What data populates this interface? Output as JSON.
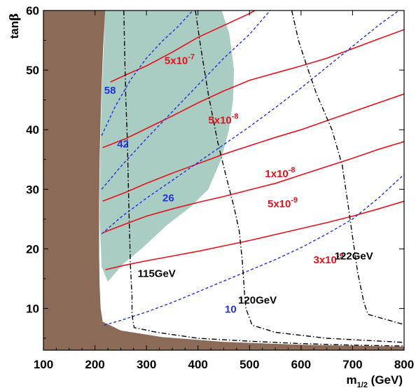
{
  "chart_data": {
    "type": "line",
    "xlabel": "m",
    "xlabel_sub": "1/2",
    "xlabel_unit": " (GeV)",
    "ylabel": "tan",
    "ylabel_greek": "β",
    "xlim": [
      100,
      800
    ],
    "ylim": [
      3,
      60
    ],
    "x_ticks": [
      100,
      200,
      300,
      400,
      500,
      600,
      700,
      800
    ],
    "y_ticks": [
      10,
      20,
      30,
      40,
      50,
      60
    ],
    "regions": [
      {
        "name": "excluded-region",
        "color": "#8b6a58",
        "points": [
          [
            100,
            3
          ],
          [
            100,
            60
          ],
          [
            220,
            60
          ],
          [
            216,
            54
          ],
          [
            212,
            45
          ],
          [
            209,
            35
          ],
          [
            208,
            27
          ],
          [
            208,
            19
          ],
          [
            209,
            14
          ],
          [
            211,
            10
          ],
          [
            215,
            7.8
          ],
          [
            250,
            6.3
          ],
          [
            330,
            5.2
          ],
          [
            450,
            4.4
          ],
          [
            600,
            3.9
          ],
          [
            800,
            3.6
          ],
          [
            800,
            3
          ]
        ]
      },
      {
        "name": "shaded-region",
        "color": "#aacdc3",
        "points": [
          [
            220,
            60
          ],
          [
            446,
            60
          ],
          [
            461,
            56
          ],
          [
            470,
            50
          ],
          [
            468,
            45
          ],
          [
            460,
            40
          ],
          [
            445,
            35
          ],
          [
            420,
            30
          ],
          [
            385,
            27
          ],
          [
            340,
            24
          ],
          [
            290,
            20
          ],
          [
            255,
            17.5
          ],
          [
            225,
            14.5
          ],
          [
            213,
            17
          ],
          [
            209,
            25
          ],
          [
            210,
            35
          ],
          [
            213,
            45
          ],
          [
            217,
            54
          ]
        ]
      }
    ],
    "series": [
      {
        "group": "red",
        "color": "#e8111b",
        "style": "solid",
        "label_text": "5x10",
        "label_exp": "-7",
        "label_at": [
          335,
          51
        ],
        "points": [
          [
            230,
            48
          ],
          [
            260,
            49.2
          ],
          [
            300,
            50.7
          ],
          [
            350,
            53
          ],
          [
            400,
            55.5
          ],
          [
            450,
            57.5
          ],
          [
            500,
            59.5
          ],
          [
            510,
            60
          ]
        ]
      },
      {
        "group": "red",
        "color": "#e8111b",
        "style": "solid",
        "label_text": "5x10",
        "label_exp": "-8",
        "label_at": [
          420,
          41
        ],
        "points": [
          [
            215,
            37
          ],
          [
            260,
            38.5
          ],
          [
            300,
            40.2
          ],
          [
            350,
            42.3
          ],
          [
            400,
            44.5
          ],
          [
            450,
            46.5
          ],
          [
            500,
            48.3
          ],
          [
            550,
            49.5
          ],
          [
            600,
            50.7
          ],
          [
            650,
            52
          ],
          [
            700,
            53.6
          ],
          [
            750,
            55.2
          ],
          [
            800,
            56.8
          ]
        ]
      },
      {
        "group": "red",
        "color": "#e8111b",
        "style": "solid",
        "label_text": "1x10",
        "label_exp": "-8",
        "label_at": [
          530,
          32
        ],
        "points": [
          [
            215,
            28
          ],
          [
            260,
            29.5
          ],
          [
            300,
            31
          ],
          [
            350,
            32.7
          ],
          [
            400,
            34.3
          ],
          [
            450,
            35.9
          ],
          [
            500,
            37.3
          ],
          [
            550,
            38.7
          ],
          [
            600,
            40
          ],
          [
            650,
            41.5
          ],
          [
            700,
            43
          ],
          [
            750,
            44.5
          ],
          [
            800,
            46
          ]
        ]
      },
      {
        "group": "red",
        "color": "#e8111b",
        "style": "solid",
        "label_text": "5x10",
        "label_exp": "-9",
        "label_at": [
          535,
          27
        ],
        "points": [
          [
            215,
            22.7
          ],
          [
            260,
            24.2
          ],
          [
            300,
            25.5
          ],
          [
            350,
            26.7
          ],
          [
            400,
            27.8
          ],
          [
            450,
            28.8
          ],
          [
            500,
            29.9
          ],
          [
            550,
            31
          ],
          [
            600,
            32.4
          ],
          [
            650,
            33.8
          ],
          [
            700,
            35.2
          ],
          [
            750,
            36.7
          ],
          [
            800,
            38
          ]
        ]
      },
      {
        "group": "red",
        "color": "#e8111b",
        "style": "solid",
        "label_text": "3x10",
        "label_exp": "-9",
        "label_at": [
          624,
          17.6
        ],
        "points": [
          [
            220,
            16.5
          ],
          [
            260,
            17.3
          ],
          [
            300,
            18
          ],
          [
            350,
            18.8
          ],
          [
            400,
            19.6
          ],
          [
            450,
            20.5
          ],
          [
            500,
            21.4
          ],
          [
            550,
            22.4
          ],
          [
            600,
            23.4
          ],
          [
            650,
            24.4
          ],
          [
            700,
            25.5
          ],
          [
            750,
            26.7
          ],
          [
            800,
            28
          ]
        ]
      },
      {
        "group": "blue",
        "color": "#1e32e0",
        "style": "dashed",
        "label_text": "58",
        "label_at": [
          218,
          46
        ],
        "points": [
          [
            213,
            39
          ],
          [
            240,
            44
          ],
          [
            270,
            48.5
          ],
          [
            300,
            52
          ],
          [
            330,
            54.8
          ],
          [
            360,
            57.2
          ],
          [
            390,
            60
          ]
        ]
      },
      {
        "group": "blue",
        "color": "#1e32e0",
        "style": "dashed",
        "label_text": "42",
        "label_at": [
          243,
          37
        ],
        "points": [
          [
            213,
            30
          ],
          [
            250,
            33.8
          ],
          [
            300,
            38.5
          ],
          [
            350,
            43
          ],
          [
            400,
            47.5
          ],
          [
            450,
            52
          ],
          [
            500,
            56
          ],
          [
            540,
            60
          ]
        ]
      },
      {
        "group": "blue",
        "color": "#1e32e0",
        "style": "dashed",
        "label_text": "26",
        "label_at": [
          331,
          28
        ],
        "points": [
          [
            213,
            22.5
          ],
          [
            250,
            25.3
          ],
          [
            300,
            28.5
          ],
          [
            350,
            31.5
          ],
          [
            400,
            34.5
          ],
          [
            450,
            37.5
          ],
          [
            500,
            40.5
          ],
          [
            550,
            43.7
          ],
          [
            600,
            47
          ],
          [
            650,
            50.5
          ],
          [
            700,
            54
          ],
          [
            750,
            57.5
          ],
          [
            790,
            60
          ]
        ]
      },
      {
        "group": "blue",
        "color": "#1e32e0",
        "style": "dashed",
        "label_text": "10",
        "label_at": [
          452,
          9.3
        ],
        "points": [
          [
            218,
            7.2
          ],
          [
            250,
            8
          ],
          [
            300,
            9.4
          ],
          [
            350,
            11
          ],
          [
            400,
            12.8
          ],
          [
            450,
            14.6
          ],
          [
            500,
            16.4
          ],
          [
            550,
            18.2
          ],
          [
            600,
            20.2
          ],
          [
            650,
            22.5
          ],
          [
            700,
            25
          ],
          [
            750,
            28.5
          ],
          [
            800,
            32.5
          ]
        ]
      },
      {
        "group": "black",
        "color": "#000000",
        "style": "dashdot",
        "label_text": "115GeV",
        "label_at": [
          283,
          15.3
        ],
        "points": [
          [
            256,
            60
          ],
          [
            258,
            52
          ],
          [
            260,
            45
          ],
          [
            263,
            38
          ],
          [
            265,
            30
          ],
          [
            267,
            23
          ],
          [
            269,
            17
          ],
          [
            272,
            12
          ],
          [
            272,
            9
          ],
          [
            276,
            6.8
          ],
          [
            320,
            6
          ],
          [
            400,
            5
          ],
          [
            500,
            4.5
          ],
          [
            600,
            4.1
          ],
          [
            700,
            3.85
          ],
          [
            800,
            3.7
          ]
        ]
      },
      {
        "group": "black",
        "color": "#000000",
        "style": "dashdot",
        "label_text": "120GeV",
        "label_at": [
          478,
          10.8
        ],
        "points": [
          [
            395,
            60
          ],
          [
            405,
            54
          ],
          [
            420,
            46
          ],
          [
            438,
            38
          ],
          [
            455,
            32
          ],
          [
            470,
            27
          ],
          [
            480,
            23
          ],
          [
            486,
            18
          ],
          [
            490,
            13
          ],
          [
            493,
            10
          ],
          [
            505,
            7.2
          ],
          [
            550,
            6
          ],
          [
            650,
            5
          ],
          [
            800,
            4.3
          ]
        ]
      },
      {
        "group": "black",
        "color": "#000000",
        "style": "dashdot",
        "label_text": "122GeV",
        "label_at": [
          665,
          18.2
        ],
        "points": [
          [
            582,
            60
          ],
          [
            595,
            55
          ],
          [
            610,
            51
          ],
          [
            630,
            46
          ],
          [
            660,
            40
          ],
          [
            680,
            34
          ],
          [
            692,
            27
          ],
          [
            700,
            22
          ],
          [
            710,
            16
          ],
          [
            722,
            11
          ],
          [
            730,
            9
          ],
          [
            800,
            7.3
          ]
        ]
      }
    ]
  }
}
